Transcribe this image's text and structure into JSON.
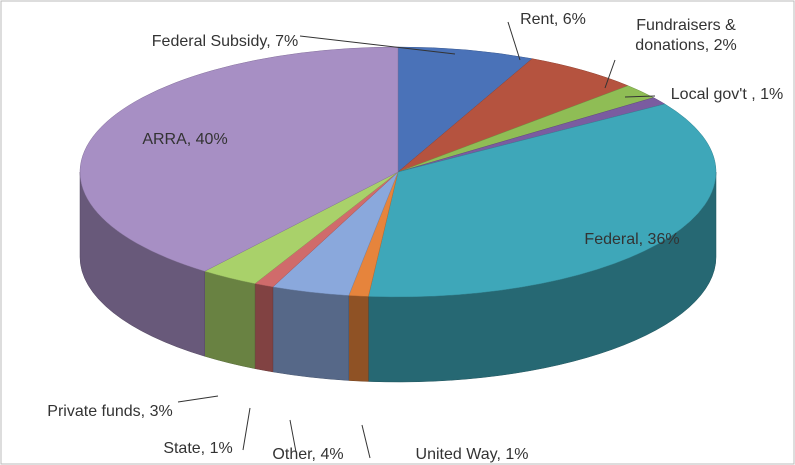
{
  "chart_data": {
    "type": "pie3d",
    "values": [
      7,
      6,
      2,
      1,
      36,
      1,
      4,
      1,
      3,
      40
    ],
    "value_labels": [
      "Federal Subsidy, 7%",
      "Rent, 6%",
      "Fundraisers & donations, 2%",
      "Local gov't , 1%",
      "Federal, 36%",
      "United Way, 1%",
      "Other, 4%",
      "State, 1%",
      "Private funds, 3%",
      "ARRA, 40%"
    ],
    "colors": [
      "#4a72b8",
      "#b5533f",
      "#8fbd55",
      "#7a5ca0",
      "#3ea7b9",
      "#e6843c",
      "#8aa8dc",
      "#d06b6b",
      "#a9d16a",
      "#a78fc4"
    ]
  }
}
